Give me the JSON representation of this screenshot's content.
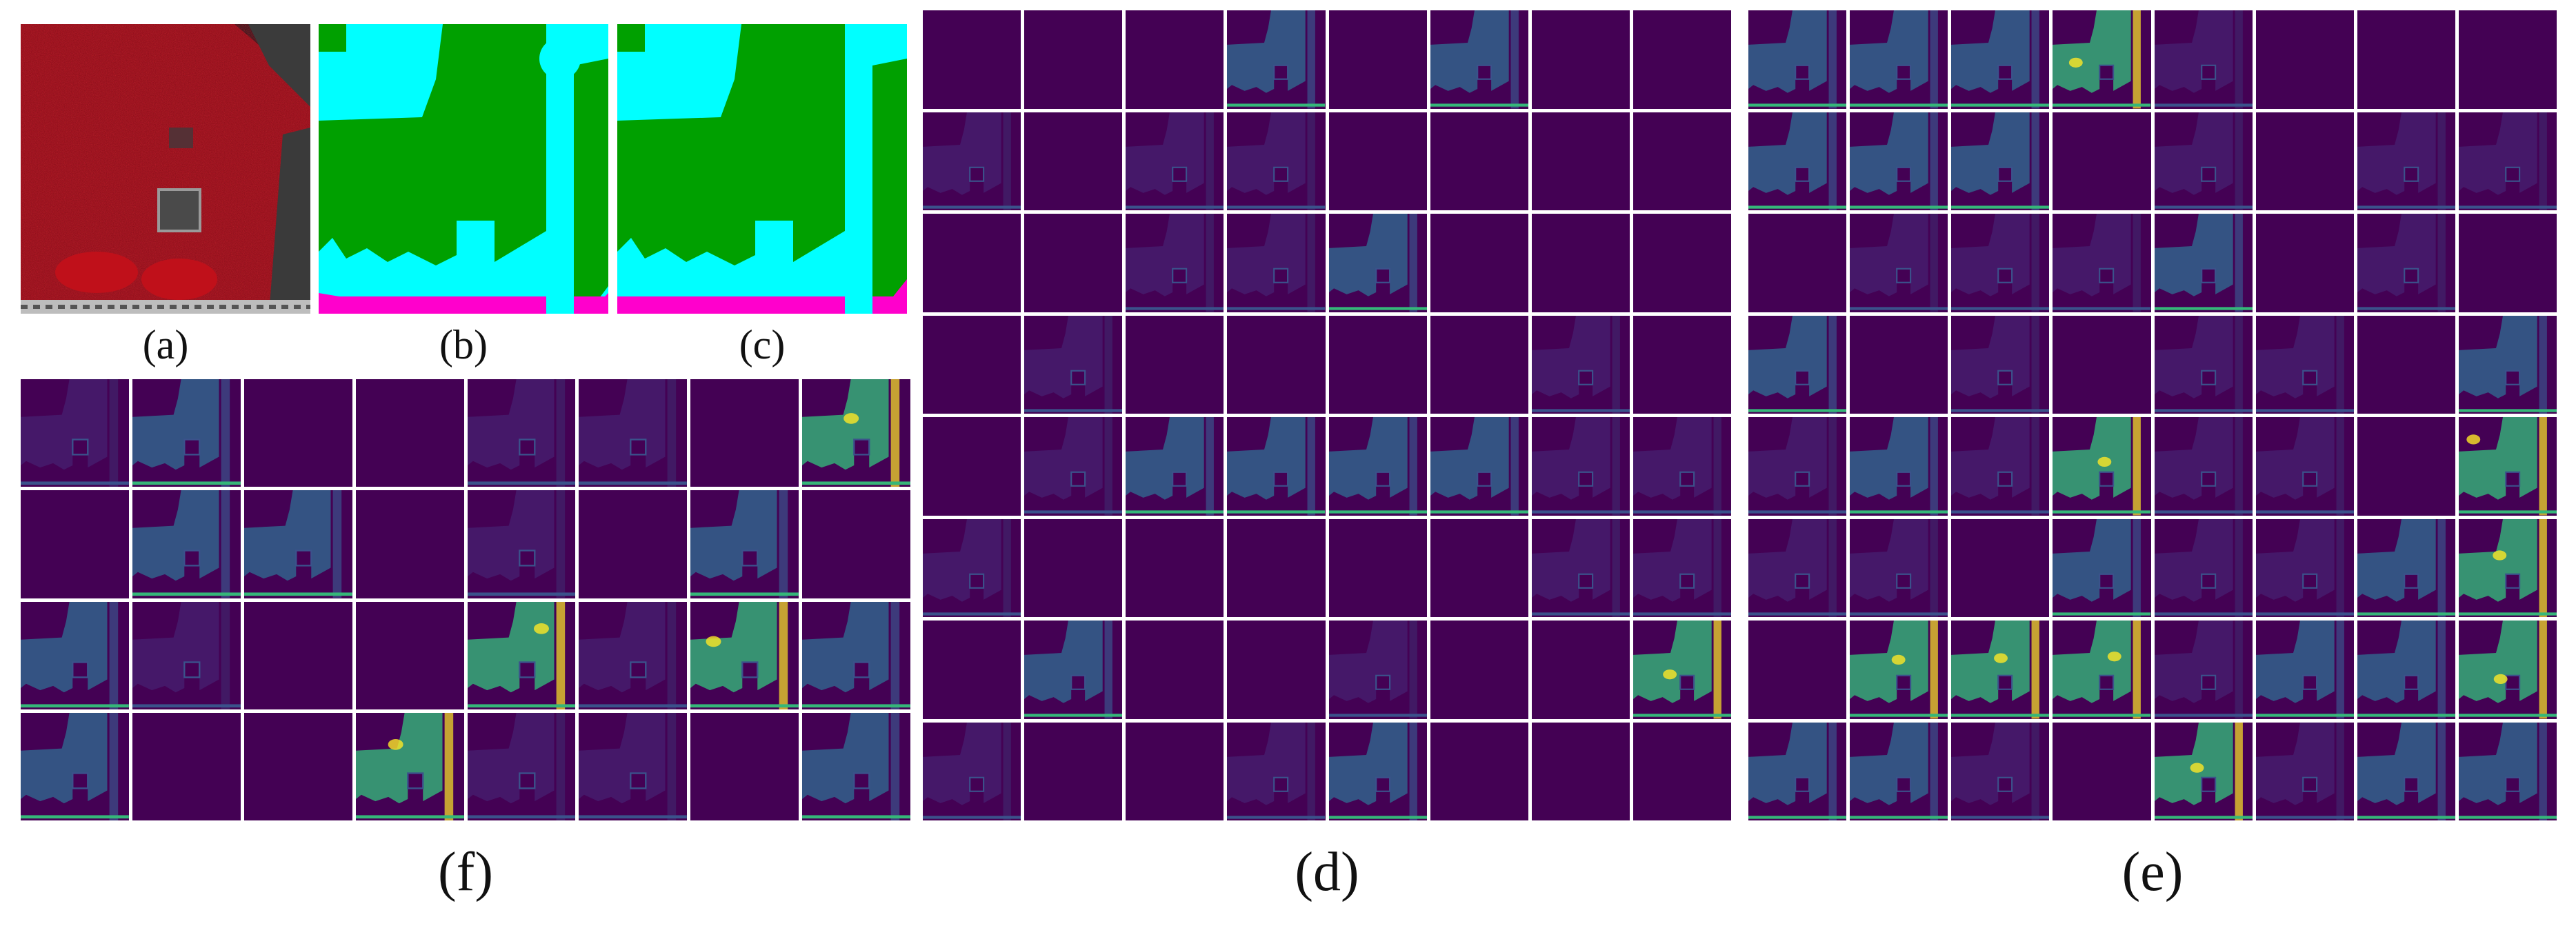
{
  "figure": {
    "panels": [
      {
        "id": "a",
        "label": "(a)",
        "content": "false-color input image (near-infrared/red composite)"
      },
      {
        "id": "b",
        "label": "(b)",
        "content": "segmentation map"
      },
      {
        "id": "c",
        "label": "(c)",
        "content": "segmentation map"
      },
      {
        "id": "d",
        "label": "(d)",
        "content": "feature maps grid 8x8",
        "rows": 8,
        "cols": 8
      },
      {
        "id": "e",
        "label": "(e)",
        "content": "feature maps grid 8x8",
        "rows": 8,
        "cols": 8
      },
      {
        "id": "f",
        "label": "(f)",
        "content": "feature maps grid 4x8",
        "rows": 4,
        "cols": 8
      }
    ]
  },
  "colors": {
    "feature_dark": "#440154",
    "feature_mid": "#31688e",
    "feature_teal": "#35b779",
    "feature_bright": "#fde725",
    "seg_green": "#00a000",
    "seg_cyan": "#00ffff",
    "seg_magenta": "#ff00cc",
    "input_red": "#b01020"
  }
}
